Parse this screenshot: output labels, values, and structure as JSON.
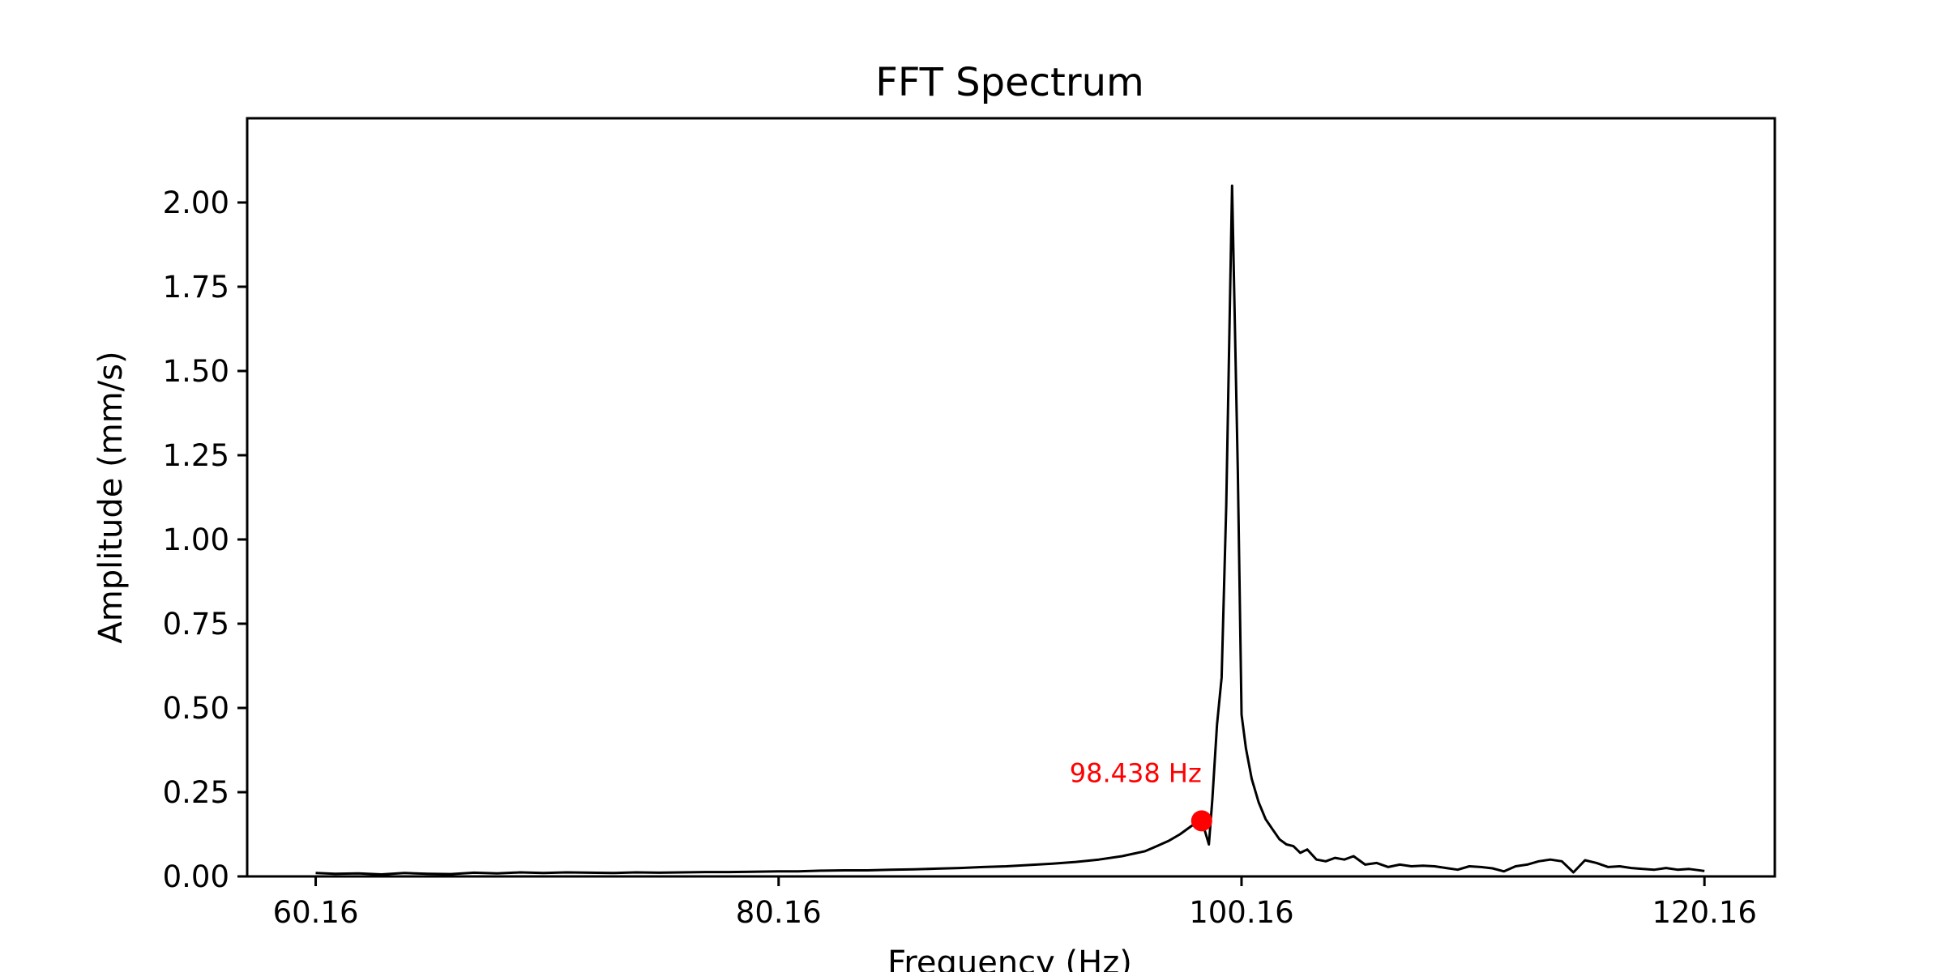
{
  "chart_data": {
    "type": "line",
    "title": "FFT Spectrum",
    "xlabel": "Frequency (Hz)",
    "ylabel": "Amplitude (mm/s)",
    "xlim": [
      57.2,
      123.2
    ],
    "ylim": [
      0,
      2.25
    ],
    "xticks": [
      60.16,
      80.16,
      100.16,
      120.16
    ],
    "xtick_labels": [
      "60.16",
      "80.16",
      "100.16",
      "120.16"
    ],
    "yticks": [
      0,
      0.25,
      0.5,
      0.75,
      1.0,
      1.25,
      1.5,
      1.75,
      2.0
    ],
    "ytick_labels": [
      "0.00",
      "0.25",
      "0.50",
      "0.75",
      "1.00",
      "1.25",
      "1.50",
      "1.75",
      "2.00"
    ],
    "grid": false,
    "colors": {
      "line": "#000000",
      "marker": "#ff0000",
      "annotation": "#ff0000"
    },
    "series": [
      {
        "x": [
          60.16,
          61.0,
          62.0,
          63.0,
          64.0,
          65.0,
          66.0,
          67.0,
          68.0,
          69.0,
          70.0,
          71.0,
          72.0,
          73.0,
          74.0,
          75.0,
          76.0,
          77.0,
          78.0,
          79.0,
          80.16,
          81.0,
          82.0,
          83.0,
          84.0,
          85.0,
          86.0,
          87.0,
          88.0,
          89.0,
          90.0,
          91.0,
          92.0,
          93.0,
          94.0,
          95.0,
          96.0,
          96.5,
          97.0,
          97.5,
          98.0,
          98.3,
          98.438,
          98.6,
          98.75,
          98.9,
          99.1,
          99.3,
          99.5,
          99.75,
          100.0,
          100.16,
          100.35,
          100.6,
          100.9,
          101.2,
          101.5,
          101.8,
          102.1,
          102.4,
          102.7,
          103.0,
          103.4,
          103.8,
          104.2,
          104.6,
          105.0,
          105.5,
          106.0,
          106.5,
          107.0,
          107.5,
          108.0,
          108.5,
          109.0,
          109.5,
          110.0,
          110.5,
          111.0,
          111.5,
          112.0,
          112.5,
          113.0,
          113.5,
          114.0,
          114.5,
          115.0,
          115.5,
          116.0,
          116.5,
          117.0,
          117.5,
          118.0,
          118.5,
          119.0,
          119.5,
          120.16
        ],
        "y": [
          0.01,
          0.008,
          0.009,
          0.006,
          0.01,
          0.008,
          0.007,
          0.011,
          0.009,
          0.012,
          0.01,
          0.012,
          0.011,
          0.01,
          0.012,
          0.011,
          0.012,
          0.013,
          0.013,
          0.014,
          0.015,
          0.015,
          0.017,
          0.018,
          0.018,
          0.02,
          0.021,
          0.023,
          0.025,
          0.028,
          0.03,
          0.034,
          0.038,
          0.043,
          0.05,
          0.06,
          0.075,
          0.09,
          0.105,
          0.125,
          0.15,
          0.16,
          0.165,
          0.13,
          0.095,
          0.23,
          0.45,
          0.59,
          1.1,
          2.05,
          1.2,
          0.48,
          0.38,
          0.29,
          0.22,
          0.17,
          0.14,
          0.11,
          0.095,
          0.09,
          0.07,
          0.08,
          0.05,
          0.045,
          0.055,
          0.05,
          0.06,
          0.035,
          0.04,
          0.028,
          0.035,
          0.03,
          0.032,
          0.03,
          0.025,
          0.02,
          0.03,
          0.028,
          0.024,
          0.015,
          0.03,
          0.035,
          0.045,
          0.05,
          0.045,
          0.012,
          0.048,
          0.04,
          0.028,
          0.03,
          0.025,
          0.022,
          0.02,
          0.025,
          0.02,
          0.022,
          0.016
        ]
      }
    ],
    "highlight": {
      "x": 98.438,
      "y": 0.165,
      "label": "98.438 Hz"
    }
  }
}
